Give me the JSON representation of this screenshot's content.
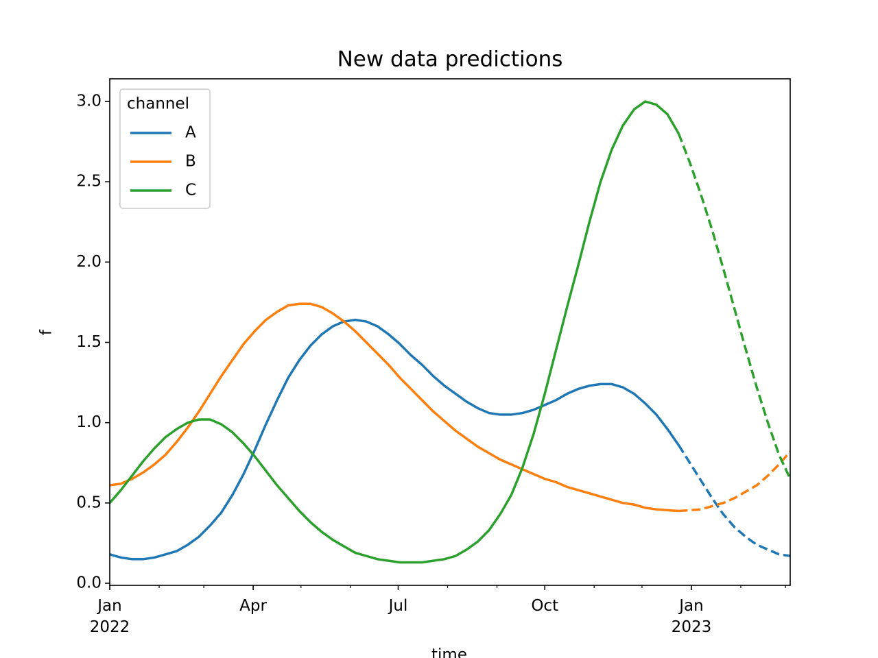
{
  "chart_data": {
    "type": "line",
    "title": "New data predictions",
    "xlabel": "time",
    "ylabel": "f",
    "x": [
      0,
      7,
      14,
      21,
      28,
      35,
      42,
      49,
      56,
      63,
      70,
      77,
      84,
      91,
      98,
      105,
      112,
      119,
      126,
      133,
      140,
      147,
      154,
      161,
      168,
      175,
      182,
      189,
      196,
      203,
      210,
      217,
      224,
      231,
      238,
      245,
      252,
      259,
      266,
      273,
      280,
      287,
      294,
      301,
      308,
      315,
      322,
      329,
      336,
      343,
      350,
      357,
      364,
      371,
      378,
      385,
      392,
      399,
      406,
      413,
      420,
      427
    ],
    "xlim": [
      0,
      427
    ],
    "xticks": [
      {
        "value": 0,
        "label": "Jan\n2022"
      },
      {
        "value": 90,
        "label": "Apr"
      },
      {
        "value": 181,
        "label": "Jul"
      },
      {
        "value": 273,
        "label": "Oct"
      },
      {
        "value": 365,
        "label": "Jan\n2023"
      }
    ],
    "xminorticks": [
      31,
      59,
      120,
      151,
      212,
      243,
      304,
      334,
      396,
      424
    ],
    "ylim": [
      -0.013,
      3.141
    ],
    "yticks": [
      {
        "value": 0,
        "label": "0.0"
      },
      0.5,
      {
        "value": 1,
        "label": "1.0"
      },
      1.5,
      {
        "value": 2,
        "label": "2.0"
      },
      2.5,
      {
        "value": 3,
        "label": "3.0"
      }
    ],
    "legend": {
      "title": "channel",
      "loc": "upper left"
    },
    "series": [
      {
        "name": "A",
        "color": "#1f77b4",
        "values": [
          0.18,
          0.16,
          0.15,
          0.15,
          0.16,
          0.18,
          0.2,
          0.24,
          0.29,
          0.36,
          0.44,
          0.55,
          0.68,
          0.83,
          0.99,
          1.14,
          1.28,
          1.39,
          1.48,
          1.55,
          1.6,
          1.63,
          1.64,
          1.63,
          1.6,
          1.55,
          1.49,
          1.42,
          1.36,
          1.29,
          1.23,
          1.18,
          1.13,
          1.09,
          1.06,
          1.05,
          1.05,
          1.06,
          1.08,
          1.11,
          1.14,
          1.18,
          1.21,
          1.23,
          1.24,
          1.24,
          1.22,
          1.18,
          1.12,
          1.05,
          0.96,
          0.86,
          null,
          null,
          null,
          null,
          null,
          null,
          null,
          null,
          null,
          null
        ],
        "predictions": [
          null,
          null,
          null,
          null,
          null,
          null,
          null,
          null,
          null,
          null,
          null,
          null,
          null,
          null,
          null,
          null,
          null,
          null,
          null,
          null,
          null,
          null,
          null,
          null,
          null,
          null,
          null,
          null,
          null,
          null,
          null,
          null,
          null,
          null,
          null,
          null,
          null,
          null,
          null,
          null,
          null,
          null,
          null,
          null,
          null,
          null,
          null,
          null,
          null,
          null,
          null,
          0.86,
          0.75,
          0.64,
          0.53,
          0.43,
          0.35,
          0.29,
          0.24,
          0.21,
          0.18,
          0.17
        ]
      },
      {
        "name": "B",
        "color": "#ff7f0e",
        "values": [
          0.61,
          0.62,
          0.65,
          0.69,
          0.74,
          0.8,
          0.88,
          0.97,
          1.07,
          1.18,
          1.29,
          1.39,
          1.49,
          1.57,
          1.64,
          1.69,
          1.73,
          1.74,
          1.74,
          1.72,
          1.68,
          1.63,
          1.57,
          1.5,
          1.43,
          1.36,
          1.28,
          1.21,
          1.14,
          1.07,
          1.01,
          0.95,
          0.9,
          0.85,
          0.81,
          0.77,
          0.74,
          0.71,
          0.68,
          0.65,
          0.63,
          0.6,
          0.58,
          0.56,
          0.54,
          0.52,
          0.5,
          0.49,
          0.47,
          0.46,
          0.455,
          0.45,
          null,
          null,
          null,
          null,
          null,
          null,
          null,
          null,
          null,
          null
        ],
        "predictions": [
          null,
          null,
          null,
          null,
          null,
          null,
          null,
          null,
          null,
          null,
          null,
          null,
          null,
          null,
          null,
          null,
          null,
          null,
          null,
          null,
          null,
          null,
          null,
          null,
          null,
          null,
          null,
          null,
          null,
          null,
          null,
          null,
          null,
          null,
          null,
          null,
          null,
          null,
          null,
          null,
          null,
          null,
          null,
          null,
          null,
          null,
          null,
          null,
          null,
          null,
          null,
          0.45,
          0.455,
          0.46,
          0.48,
          0.5,
          0.53,
          0.57,
          0.61,
          0.67,
          0.74,
          0.82
        ]
      },
      {
        "name": "C",
        "color": "#2ca02c",
        "values": [
          0.5,
          0.58,
          0.67,
          0.76,
          0.84,
          0.91,
          0.96,
          1.0,
          1.02,
          1.02,
          0.99,
          0.94,
          0.87,
          0.79,
          0.7,
          0.61,
          0.53,
          0.45,
          0.38,
          0.32,
          0.27,
          0.23,
          0.19,
          0.17,
          0.15,
          0.14,
          0.13,
          0.13,
          0.13,
          0.14,
          0.15,
          0.17,
          0.21,
          0.26,
          0.33,
          0.43,
          0.55,
          0.72,
          0.93,
          1.18,
          1.45,
          1.72,
          1.98,
          2.25,
          2.5,
          2.7,
          2.85,
          2.95,
          3.0,
          2.98,
          2.92,
          2.8,
          null,
          null,
          null,
          null,
          null,
          null,
          null,
          null,
          null,
          null
        ],
        "predictions": [
          null,
          null,
          null,
          null,
          null,
          null,
          null,
          null,
          null,
          null,
          null,
          null,
          null,
          null,
          null,
          null,
          null,
          null,
          null,
          null,
          null,
          null,
          null,
          null,
          null,
          null,
          null,
          null,
          null,
          null,
          null,
          null,
          null,
          null,
          null,
          null,
          null,
          null,
          null,
          null,
          null,
          null,
          null,
          null,
          null,
          null,
          null,
          null,
          null,
          null,
          null,
          2.8,
          2.62,
          2.42,
          2.2,
          1.96,
          1.71,
          1.46,
          1.22,
          1.0,
          0.8,
          0.65
        ]
      }
    ]
  }
}
